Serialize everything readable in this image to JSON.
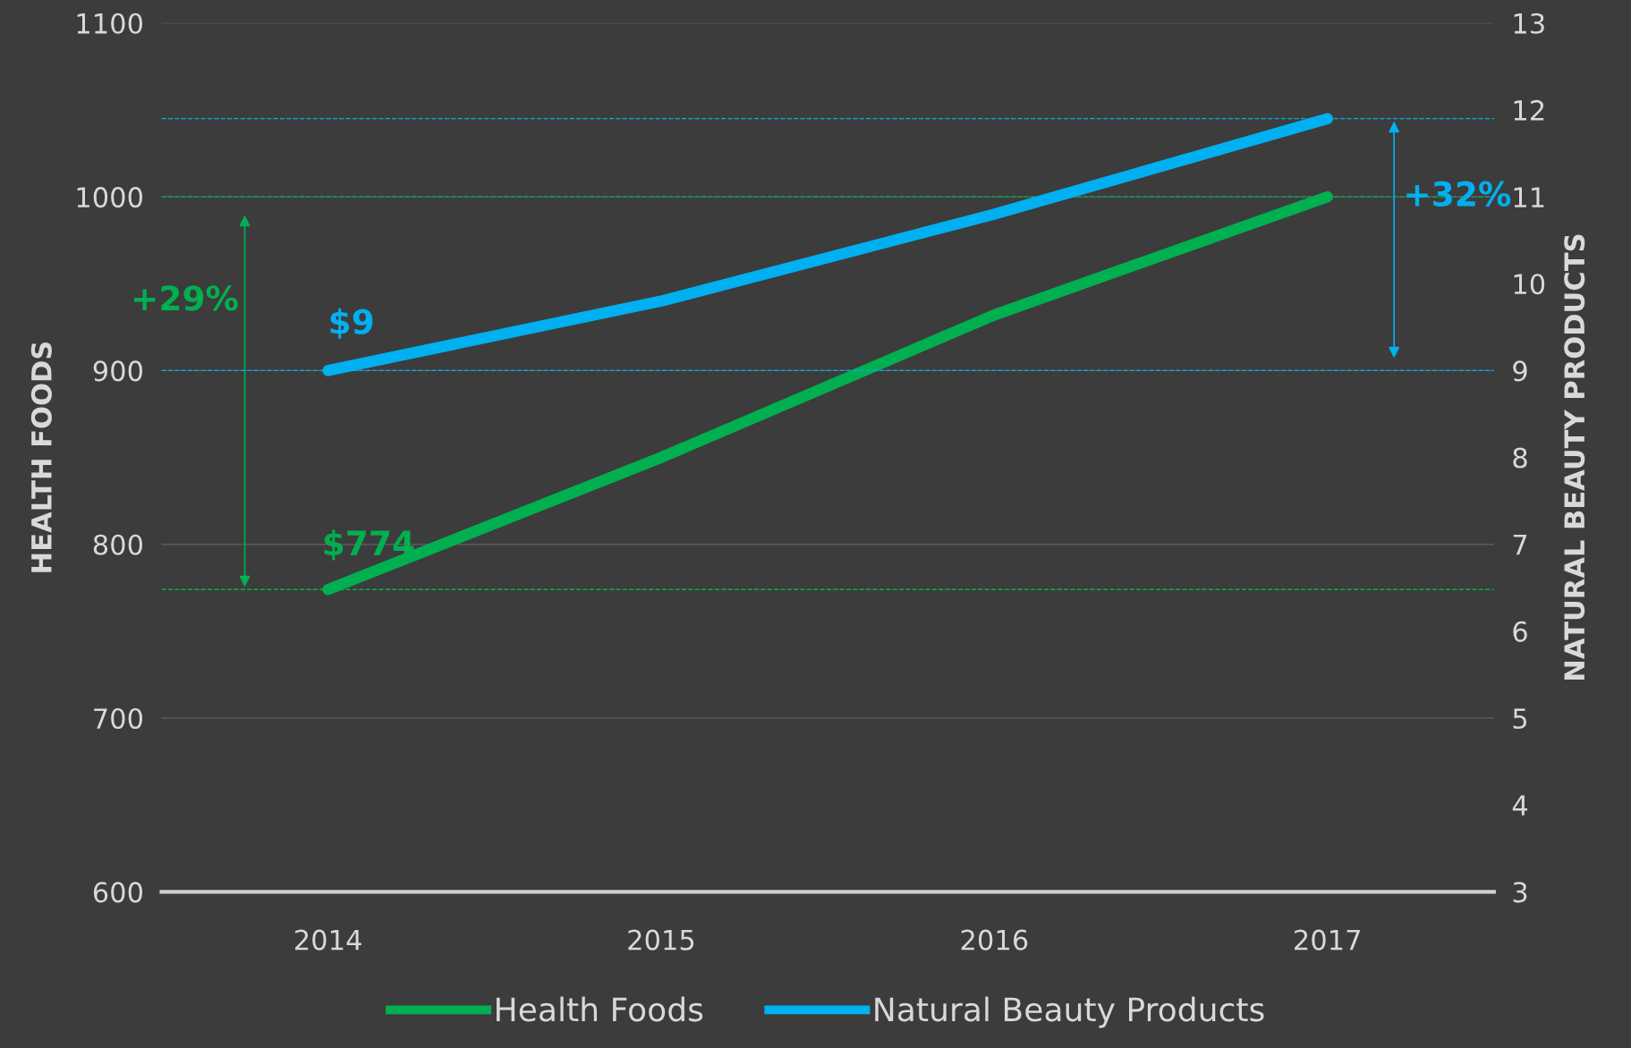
{
  "chart_data": {
    "type": "line",
    "ylabel": "HEALTH FOODS",
    "y2label": "NATURAL BEAUTY PRODUCTS",
    "categories": [
      "2014",
      "2015",
      "2016",
      "2017"
    ],
    "series": [
      {
        "name": "Health Foods",
        "color": "#00b050",
        "values": [
          774,
          850,
          932,
          1000
        ]
      },
      {
        "name": "Natural Beauty Products",
        "color": "#00b0f0",
        "values": [
          9,
          9.8,
          10.8,
          11.9
        ],
        "axis": "y2"
      }
    ],
    "ylim": [
      600,
      1100
    ],
    "yticks": [
      600,
      700,
      800,
      900,
      1000,
      1100
    ],
    "y2lim": [
      3,
      13
    ],
    "y2ticks": [
      3,
      4,
      5,
      6,
      7,
      8,
      9,
      10,
      11,
      12,
      13
    ],
    "ref_lines": [
      {
        "axis": "y",
        "value": 1000,
        "color": "#00b050",
        "line_style": "dashed"
      },
      {
        "axis": "y",
        "value": 774,
        "color": "#00b050",
        "line_style": "dashed"
      },
      {
        "axis": "y2",
        "value": 9,
        "color": "#00b0f0",
        "line_style": "dashed"
      },
      {
        "axis": "y2",
        "value": 11.9,
        "color": "#00b0f0",
        "line_style": "dashed"
      }
    ],
    "annotations": [
      {
        "text": "$774",
        "x": "2014",
        "y": 774
      },
      "$9",
      "+29%",
      "+32%"
    ],
    "grid": "y",
    "legend": "bottom",
    "line_style": "solid"
  }
}
